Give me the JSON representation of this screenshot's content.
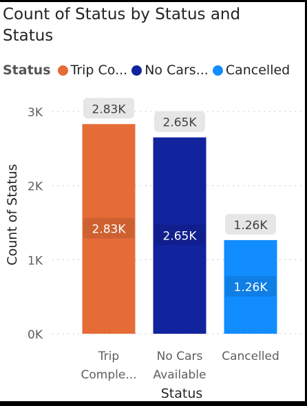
{
  "chart_data": {
    "type": "bar",
    "title": "Count of Status by Status and Status",
    "xlabel": "Status",
    "ylabel": "Count of Status",
    "legend": {
      "title": "Status",
      "placement": "top-left",
      "items": [
        {
          "label": "Trip Co...",
          "color": "#E66C37"
        },
        {
          "label": "No Cars...",
          "color": "#12239E"
        },
        {
          "label": "Cancelled",
          "color": "#118DFF"
        }
      ]
    },
    "categories": [
      {
        "lines": [
          "Trip",
          "Comple..."
        ]
      },
      {
        "lines": [
          "No Cars",
          "Available"
        ]
      },
      {
        "lines": [
          "Cancelled"
        ]
      }
    ],
    "values": [
      2830,
      2650,
      1264
    ],
    "colors": [
      "#E66C37",
      "#12239E",
      "#118DFF"
    ],
    "total_labels": [
      "2.83K",
      "2.65K",
      "1.26K"
    ],
    "inside_labels": [
      "2.83K",
      "2.65K",
      "1.26K"
    ],
    "yticks": [
      {
        "value": 0,
        "label": "0K"
      },
      {
        "value": 1000,
        "label": "1K"
      },
      {
        "value": 2000,
        "label": "2K"
      },
      {
        "value": 3000,
        "label": "3K"
      }
    ],
    "ylim": [
      0,
      3000
    ],
    "grid": true
  }
}
